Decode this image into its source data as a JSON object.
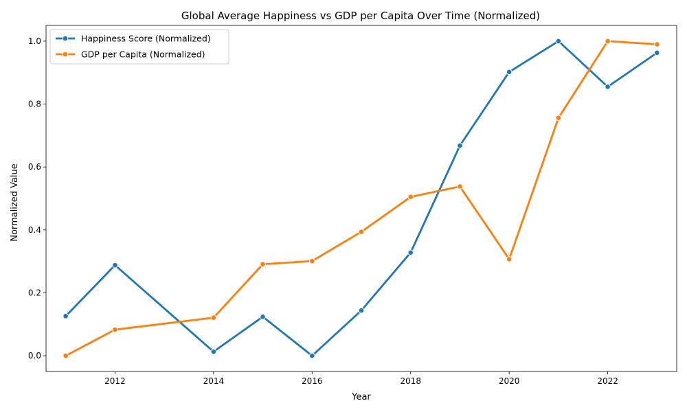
{
  "chart_data": {
    "type": "line",
    "title": "Global Average Happiness vs GDP per Capita Over Time (Normalized)",
    "xlabel": "Year",
    "ylabel": "Normalized Value",
    "xlim": [
      2010.6,
      2023.4
    ],
    "ylim": [
      -0.05,
      1.05
    ],
    "xticks": [
      2012,
      2014,
      2016,
      2018,
      2020,
      2022
    ],
    "yticks": [
      0.0,
      0.2,
      0.4,
      0.6,
      0.8,
      1.0
    ],
    "ytick_labels": [
      "0.0",
      "0.2",
      "0.4",
      "0.6",
      "0.8",
      "1.0"
    ],
    "grid": false,
    "legend_position": "top-left",
    "series": [
      {
        "name": "Happiness Score (Normalized)",
        "color": "#1f77b4",
        "x": [
          2011,
          2012,
          2014,
          2015,
          2016,
          2017,
          2018,
          2019,
          2020,
          2021,
          2022,
          2023
        ],
        "y": [
          0.126,
          0.288,
          0.013,
          0.124,
          0.0,
          0.144,
          0.328,
          0.668,
          0.902,
          1.0,
          0.855,
          0.963
        ]
      },
      {
        "name": "GDP per Capita (Normalized)",
        "color": "#ff7f0e",
        "x": [
          2011,
          2012,
          2014,
          2015,
          2016,
          2017,
          2018,
          2019,
          2020,
          2021,
          2022,
          2023
        ],
        "y": [
          0.0,
          0.083,
          0.121,
          0.291,
          0.301,
          0.394,
          0.505,
          0.538,
          0.307,
          0.756,
          1.0,
          0.99
        ]
      }
    ]
  }
}
